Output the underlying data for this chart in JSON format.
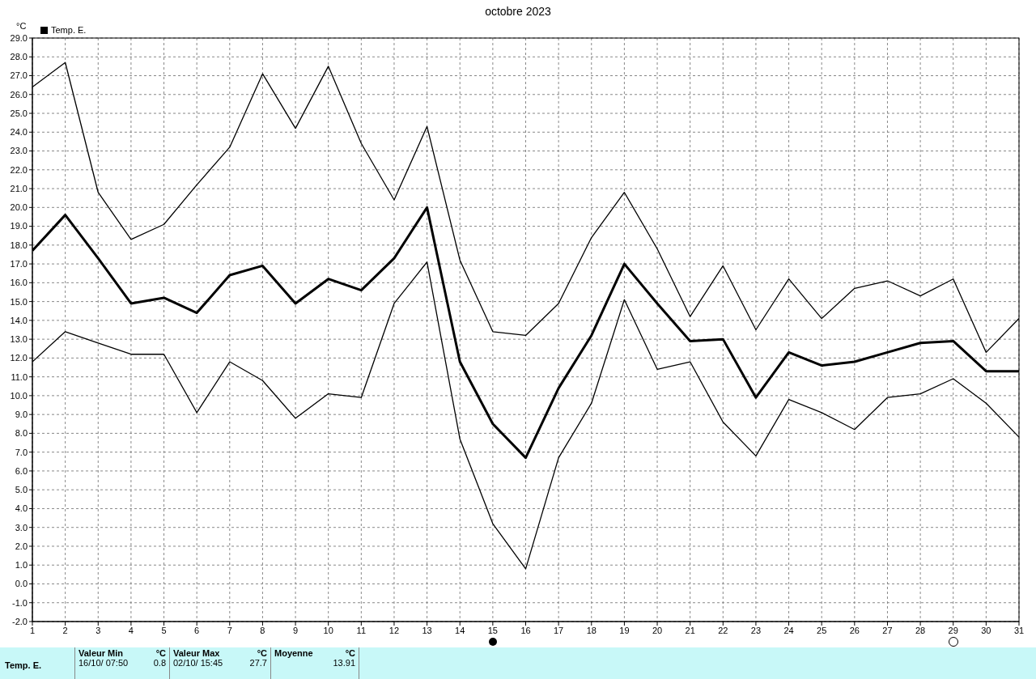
{
  "chart_data": {
    "type": "line",
    "title": "octobre 2023",
    "ylabel": "°C",
    "legend": "top left",
    "grid": true,
    "marker": "none",
    "line_style": "solid",
    "x": [
      1,
      2,
      3,
      4,
      5,
      6,
      7,
      8,
      9,
      10,
      11,
      12,
      13,
      14,
      15,
      16,
      17,
      18,
      19,
      20,
      21,
      22,
      23,
      24,
      25,
      26,
      27,
      28,
      29,
      30,
      31
    ],
    "xlim": [
      1,
      31
    ],
    "xticks": [
      1,
      2,
      3,
      4,
      5,
      6,
      7,
      8,
      9,
      10,
      11,
      12,
      13,
      14,
      15,
      16,
      17,
      18,
      19,
      20,
      21,
      22,
      23,
      24,
      25,
      26,
      27,
      28,
      29,
      30,
      31
    ],
    "ylim": [
      -2,
      29
    ],
    "yticks": [
      {
        "value": -2,
        "label": "-2.0"
      },
      {
        "value": -1,
        "label": "-1.0"
      },
      {
        "value": 0,
        "label": "0.0"
      },
      {
        "value": 1,
        "label": "1.0"
      },
      {
        "value": 2,
        "label": "2.0"
      },
      {
        "value": 3,
        "label": "3.0"
      },
      {
        "value": 4,
        "label": "4.0"
      },
      {
        "value": 5,
        "label": "5.0"
      },
      {
        "value": 6,
        "label": "6.0"
      },
      {
        "value": 7,
        "label": "7.0"
      },
      {
        "value": 8,
        "label": "8.0"
      },
      {
        "value": 9,
        "label": "9.0"
      },
      {
        "value": 10,
        "label": "10.0"
      },
      {
        "value": 11,
        "label": "11.0"
      },
      {
        "value": 12,
        "label": "12.0"
      },
      {
        "value": 13,
        "label": "13.0"
      },
      {
        "value": 14,
        "label": "14.0"
      },
      {
        "value": 15,
        "label": "15.0"
      },
      {
        "value": 16,
        "label": "16.0"
      },
      {
        "value": 17,
        "label": "17.0"
      },
      {
        "value": 18,
        "label": "18.0"
      },
      {
        "value": 19,
        "label": "19.0"
      },
      {
        "value": 20,
        "label": "20.0"
      },
      {
        "value": 21,
        "label": "21.0"
      },
      {
        "value": 22,
        "label": "22.0"
      },
      {
        "value": 23,
        "label": "23.0"
      },
      {
        "value": 24,
        "label": "24.0"
      },
      {
        "value": 25,
        "label": "25.0"
      },
      {
        "value": 26,
        "label": "26.0"
      },
      {
        "value": 27,
        "label": "27.0"
      },
      {
        "value": 28,
        "label": "28.0"
      },
      {
        "value": 29,
        "label": "29.0"
      }
    ],
    "series": [
      {
        "color": "#000000",
        "values": [
          26.4,
          27.7,
          20.8,
          18.3,
          19.1,
          21.2,
          23.2,
          27.1,
          24.2,
          27.5,
          23.4,
          20.4,
          24.3,
          17.2,
          13.4,
          13.2,
          14.9,
          18.4,
          20.8,
          17.8,
          14.2,
          16.9,
          13.5,
          16.2,
          14.1,
          15.7,
          16.1,
          15.3,
          16.2,
          12.3,
          14.1
        ]
      },
      {
        "name": "Temp. E.",
        "color": "#000000",
        "values": [
          17.7,
          19.6,
          17.3,
          14.9,
          15.2,
          14.4,
          16.4,
          16.9,
          14.9,
          16.2,
          15.6,
          17.3,
          20.0,
          11.8,
          8.5,
          6.7,
          10.4,
          13.2,
          17.0,
          14.9,
          12.9,
          13.0,
          9.9,
          12.3,
          11.6,
          11.8,
          12.3,
          12.8,
          12.9,
          11.3,
          11.3
        ]
      },
      {
        "color": "#000000",
        "values": [
          11.8,
          13.4,
          12.8,
          12.2,
          12.2,
          9.1,
          11.8,
          10.8,
          8.8,
          10.1,
          9.9,
          14.9,
          17.1,
          7.7,
          3.2,
          0.8,
          6.7,
          9.6,
          15.1,
          11.4,
          11.8,
          8.6,
          6.8,
          9.8,
          9.1,
          8.2,
          9.9,
          10.1,
          10.9,
          9.6,
          7.8
        ]
      }
    ],
    "annotations": [
      "Temp. E.",
      "Valeur Min",
      "°C",
      "16/10/ 07:50",
      "0.8",
      "Valeur Max",
      "°C",
      "02/10/ 15:45",
      "27.7",
      "Moyenne",
      "°C",
      "13.91"
    ]
  }
}
